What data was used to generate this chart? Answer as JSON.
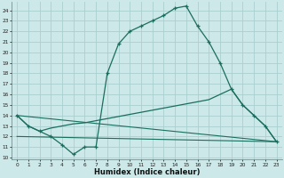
{
  "xlabel": "Humidex (Indice chaleur)",
  "background_color": "#cce8e8",
  "grid_color": "#aacfcf",
  "line_color": "#1a6e5e",
  "xlim": [
    -0.5,
    23.5
  ],
  "ylim": [
    9.8,
    24.8
  ],
  "x_ticks": [
    0,
    1,
    2,
    3,
    4,
    5,
    6,
    7,
    8,
    9,
    10,
    11,
    12,
    13,
    14,
    15,
    16,
    17,
    18,
    19,
    20,
    21,
    22,
    23
  ],
  "y_ticks": [
    10,
    11,
    12,
    13,
    14,
    15,
    16,
    17,
    18,
    19,
    20,
    21,
    22,
    23,
    24
  ],
  "line1_x": [
    0,
    1,
    2,
    3,
    4,
    5,
    6,
    7,
    8,
    9,
    10,
    11,
    12,
    13,
    14,
    15,
    16,
    17,
    18,
    19,
    20,
    21,
    22,
    23
  ],
  "line1_y": [
    14,
    13,
    12.5,
    12,
    11.2,
    10.3,
    11,
    11,
    18,
    20.8,
    22,
    22.5,
    23,
    23.5,
    24.2,
    24.4,
    22.5,
    21,
    19,
    16.5,
    15,
    14,
    13,
    11.5
  ],
  "line2_x": [
    0,
    1,
    2,
    3,
    4,
    5,
    6,
    7,
    8,
    9,
    10,
    11,
    12,
    13,
    14,
    15,
    16,
    17,
    18,
    19,
    20,
    21,
    22,
    23
  ],
  "line2_y": [
    14,
    13.0,
    12.5,
    12.8,
    13.0,
    13.2,
    13.3,
    13.5,
    13.7,
    13.9,
    14.1,
    14.3,
    14.5,
    14.7,
    14.9,
    15.1,
    15.3,
    15.5,
    16.0,
    16.5,
    15.0,
    14.0,
    13.0,
    11.5
  ],
  "line3_x": [
    0,
    23
  ],
  "line3_y": [
    14,
    11.5
  ],
  "line4_x": [
    0,
    23
  ],
  "line4_y": [
    12.0,
    11.5
  ]
}
